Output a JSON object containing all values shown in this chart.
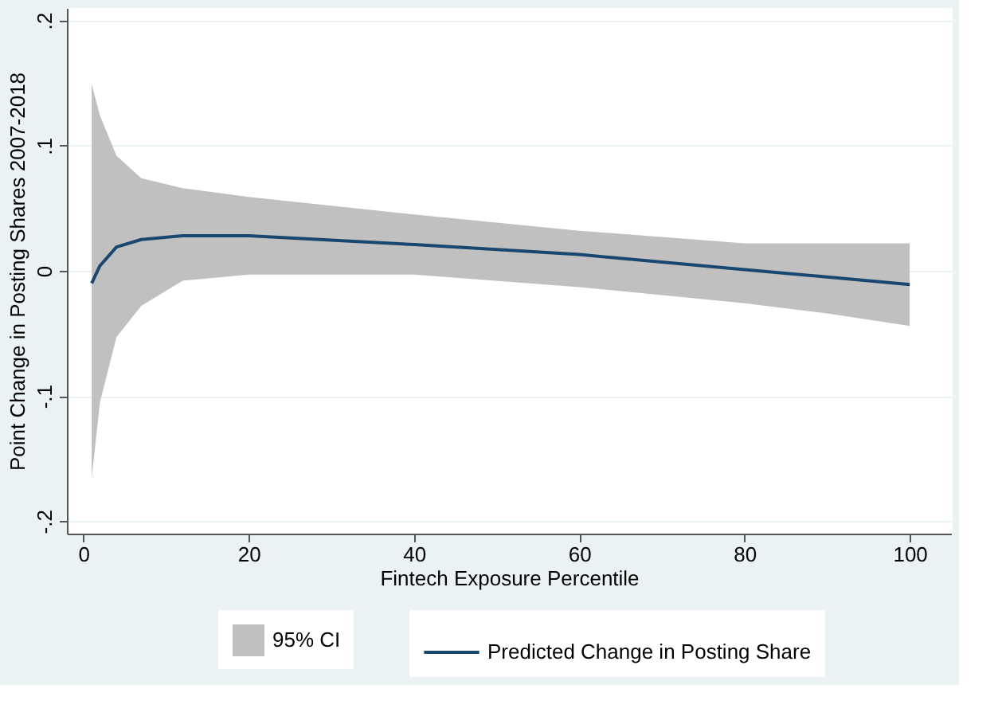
{
  "chart_data": {
    "type": "line",
    "xlabel": "Fintech Exposure Percentile",
    "ylabel": "Point Change in Posting Shares 2007-2018",
    "x": [
      1,
      2,
      4,
      7,
      12,
      20,
      40,
      60,
      80,
      90,
      100
    ],
    "series": [
      {
        "name": "Predicted Change in Posting Share",
        "type": "line",
        "color": "#1a476f",
        "values": [
          -0.01,
          0.004,
          0.019,
          0.025,
          0.028,
          0.028,
          0.021,
          0.013,
          0.001,
          -0.005,
          -0.011
        ],
        "lower": [
          -0.166,
          -0.105,
          -0.053,
          -0.028,
          -0.008,
          -0.003,
          -0.003,
          -0.013,
          -0.026,
          -0.034,
          -0.044
        ],
        "upper": [
          0.149,
          0.124,
          0.092,
          0.074,
          0.066,
          0.059,
          0.045,
          0.032,
          0.022,
          0.022,
          0.022
        ]
      }
    ],
    "annotations": [
      "95% CI"
    ],
    "xlim": [
      -2,
      105
    ],
    "xticks": [
      0,
      20,
      40,
      60,
      80,
      100
    ],
    "ylim": [
      -0.21,
      0.21
    ],
    "yticks": [
      {
        "value": -0.2,
        "label": "-.2"
      },
      {
        "value": -0.1,
        "label": "-.1"
      },
      0,
      {
        "value": 0.1,
        "label": ".1"
      },
      {
        "value": 0.2,
        "label": ".2"
      }
    ],
    "grid": "y",
    "legend": "bottom"
  }
}
